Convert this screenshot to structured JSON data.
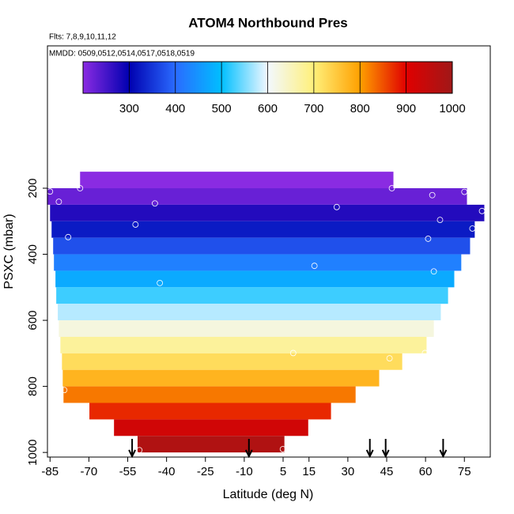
{
  "chart_data": {
    "type": "heatmap",
    "title": "ATOM4 Northbound Pres",
    "subtitle_lines": [
      "Flts: 7,8,9,10,11,12",
      "MMDD: 0509,0512,0514,0517,0518,0519"
    ],
    "x_label": "Latitude (deg N)",
    "y_label": "PSXC (mbar)",
    "xlim": [
      -86,
      85
    ],
    "ylim": [
      1014,
      -231
    ],
    "xticks": [
      -85,
      -70,
      -55,
      -40,
      -25,
      -10,
      5,
      15,
      30,
      45,
      60,
      75
    ],
    "yticks": [
      200,
      400,
      600,
      800,
      1000
    ],
    "bands": {
      "pressure_bins": [
        150,
        200,
        250,
        300,
        350,
        400,
        450,
        500,
        550,
        600,
        650,
        700,
        750,
        800,
        850,
        900,
        950,
        1000
      ],
      "lat_min": [
        -73.4,
        -86.2,
        -85,
        -84.4,
        -83.8,
        -83.5,
        -82.9,
        -82.6,
        -82,
        -81.6,
        -81,
        -80.4,
        -80.1,
        -79.8,
        -69.8,
        -60.3,
        -51.2
      ],
      "lat_max": [
        47.6,
        76,
        82.7,
        79,
        77.2,
        73.8,
        71.1,
        68.7,
        65.9,
        63.2,
        60.4,
        51,
        42.1,
        33,
        23.5,
        14.7,
        5.5
      ],
      "values": [
        175,
        225,
        275,
        325,
        375,
        425,
        475,
        525,
        575,
        625,
        675,
        725,
        775,
        825,
        875,
        925,
        975
      ]
    },
    "points": {
      "color": "#ffffff",
      "x": [
        -85,
        -73.4,
        -81.6,
        -44.5,
        47,
        62.6,
        75,
        25.7,
        81.8,
        65.6,
        -52,
        78.1,
        -78,
        61,
        17.1,
        -42.6,
        63.2,
        8.9,
        46.1,
        59.8,
        -79.5,
        -50.5,
        4.9
      ],
      "y": [
        210,
        200,
        241,
        246,
        200,
        221,
        211,
        257,
        269,
        296,
        310,
        322,
        348,
        353,
        435,
        487,
        452,
        699,
        715,
        699,
        811,
        993,
        990
      ]
    },
    "arrows_x": [
      -53.3,
      -8.2,
      38.5,
      44.6,
      66.8
    ],
    "colorbar": {
      "lim": [
        200,
        1000
      ],
      "ticks": [
        300,
        400,
        500,
        600,
        700,
        800,
        900,
        1000
      ],
      "colorscale": [
        {
          "value": 200,
          "color": "#8a2be2"
        },
        {
          "value": 300,
          "color": "#0000b0"
        },
        {
          "value": 400,
          "color": "#2a6bff"
        },
        {
          "value": 500,
          "color": "#00bfff"
        },
        {
          "value": 600,
          "color": "#f2f8ff"
        },
        {
          "value": 700,
          "color": "#fff07a"
        },
        {
          "value": 800,
          "color": "#ffa000"
        },
        {
          "value": 900,
          "color": "#e00000"
        },
        {
          "value": 1000,
          "color": "#a01818"
        }
      ]
    }
  }
}
